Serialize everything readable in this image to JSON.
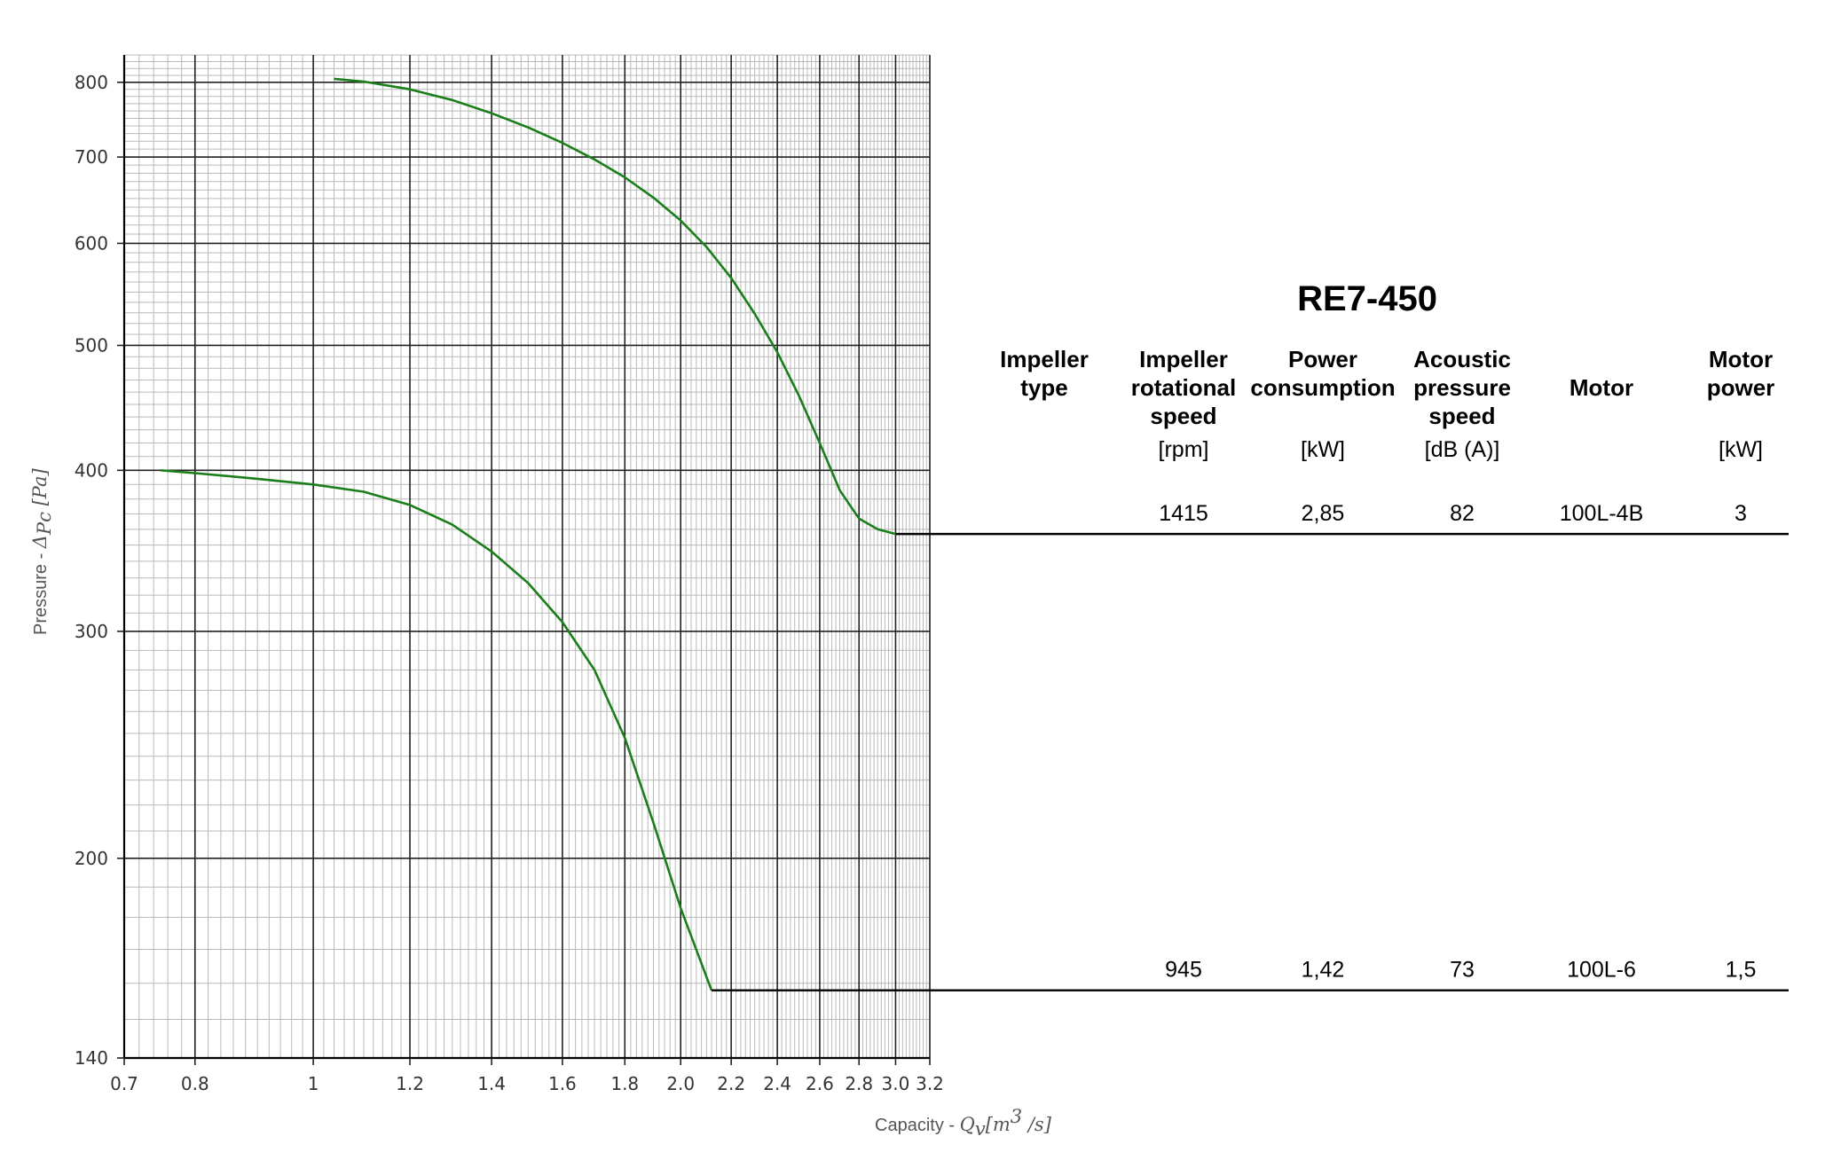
{
  "chart_data": {
    "type": "line",
    "title": "RE7-450",
    "xlabel": "Capacity - ",
    "xlabel_math": "Q_v [m^3 /s]",
    "ylabel": "Pressure - ",
    "ylabel_math": "Δ_Pc [Pa]",
    "x_scale": "log",
    "y_scale": "log",
    "xlim": [
      0.7,
      3.2
    ],
    "ylim": [
      140,
      840
    ],
    "x_ticks": [
      0.7,
      0.8,
      1,
      1.2,
      1.4,
      1.6,
      1.8,
      2.0,
      2.2,
      2.4,
      2.6,
      2.8,
      3.0,
      3.2
    ],
    "x_tick_labels": [
      "0.7",
      "0.8",
      "1",
      "1.2",
      "1.4",
      "1.6",
      "1.8",
      "2.0",
      "2.2",
      "2.4",
      "2.6",
      "2.8",
      "3.0",
      "3.2"
    ],
    "y_ticks": [
      140,
      200,
      300,
      400,
      500,
      600,
      700,
      800
    ],
    "y_tick_labels": [
      "140",
      "200",
      "300",
      "400",
      "500",
      "600",
      "700",
      "800"
    ],
    "grid": true,
    "line_color": "#1a7f1a",
    "series": [
      {
        "x": [
          1.04,
          1.1,
          1.2,
          1.3,
          1.4,
          1.5,
          1.6,
          1.7,
          1.8,
          1.9,
          2.0,
          2.1,
          2.2,
          2.3,
          2.4,
          2.5,
          2.6,
          2.7,
          2.8,
          2.9,
          3.0
        ],
        "y": [
          805,
          801,
          790,
          775,
          757,
          738,
          718,
          697,
          675,
          651,
          625,
          596,
          564,
          529,
          494,
          457,
          420,
          386,
          367,
          360,
          357
        ],
        "rpm_level": 357
      },
      {
        "x": [
          0.75,
          0.8,
          0.9,
          1.0,
          1.1,
          1.2,
          1.3,
          1.4,
          1.5,
          1.6,
          1.7,
          1.8,
          1.9,
          2.0,
          2.12
        ],
        "y": [
          400,
          398,
          394,
          390,
          385,
          376,
          363,
          346,
          327,
          305,
          280,
          248,
          213,
          183,
          158
        ],
        "rpm_level": 158
      }
    ],
    "table": {
      "headers": [
        "Impeller type",
        "Impeller rotational speed",
        "Power consumption",
        "Acoustic pressure speed",
        "Motor",
        "Motor power"
      ],
      "header_lines": [
        [
          "Impeller",
          "type"
        ],
        [
          "Impeller",
          "rotational",
          "speed"
        ],
        [
          "Power",
          "consumption"
        ],
        [
          "Acoustic",
          "pressure",
          "speed"
        ],
        [
          "Motor"
        ],
        [
          "Motor",
          "power"
        ]
      ],
      "units": [
        "",
        "[rpm]",
        "[kW]",
        "[dB (A)]",
        "",
        "[kW]"
      ],
      "rows": [
        [
          "",
          "1415",
          "2,85",
          "82",
          "100L-4B",
          "3"
        ],
        [
          "",
          "945",
          "1,42",
          "73",
          "100L-6",
          "1,5"
        ]
      ]
    }
  }
}
